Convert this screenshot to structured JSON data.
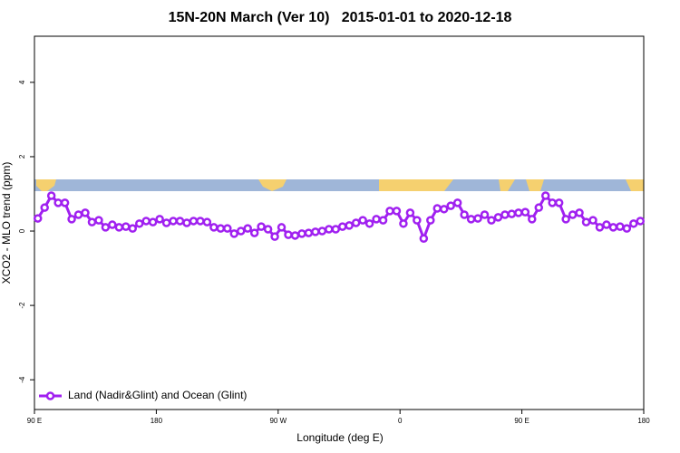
{
  "chart_data": {
    "type": "line",
    "title": "15N-20N March (Ver 10)   2015-01-01 to 2020-12-18",
    "x_label": "Longitude (deg E)",
    "y_label": "XCO2 - MLO trend (ppm)",
    "x": [
      92.5,
      97.5,
      102.5,
      107.5,
      112.5,
      117.5,
      122.5,
      127.5,
      132.5,
      137.5,
      142.5,
      147.5,
      152.5,
      157.5,
      162.5,
      167.5,
      172.5,
      177.5,
      182.5,
      187.5,
      192.5,
      197.5,
      202.5,
      207.5,
      212.5,
      217.5,
      222.5,
      227.5,
      232.5,
      237.5,
      242.5,
      247.5,
      252.5,
      257.5,
      262.5,
      267.5,
      272.5,
      277.5,
      282.5,
      287.5,
      292.5,
      297.5,
      302.5,
      307.5,
      312.5,
      317.5,
      322.5,
      327.5,
      332.5,
      337.5,
      342.5,
      347.5,
      352.5,
      357.5,
      362.5,
      367.5,
      372.5,
      377.5,
      382.5,
      387.5,
      392.5,
      397.5,
      402.5,
      407.5,
      412.5,
      417.5,
      422.5,
      427.5,
      432.5,
      437.5,
      442.5,
      447.5,
      452.5,
      457.5,
      462.5,
      467.5,
      472.5,
      477.5,
      482.5,
      487.5,
      492.5,
      497.5,
      502.5,
      507.5,
      512.5,
      517.5,
      522.5,
      527.5,
      532.5,
      537.5
    ],
    "series": [
      {
        "name": "Land (Nadir&Glint) and Ocean (Glint)",
        "color": "#a020f0",
        "values": [
          0.34,
          0.63,
          0.95,
          0.76,
          0.76,
          0.32,
          0.44,
          0.49,
          0.24,
          0.29,
          0.1,
          0.17,
          0.1,
          0.12,
          0.07,
          0.2,
          0.27,
          0.24,
          0.32,
          0.22,
          0.27,
          0.27,
          0.22,
          0.27,
          0.27,
          0.24,
          0.1,
          0.07,
          0.07,
          -0.07,
          0,
          0.07,
          -0.05,
          0.12,
          0.05,
          -0.15,
          0.1,
          -0.1,
          -0.12,
          -0.07,
          -0.05,
          -0.02,
          0,
          0.05,
          0.05,
          0.12,
          0.15,
          0.22,
          0.29,
          0.2,
          0.32,
          0.29,
          0.54,
          0.54,
          0.2,
          0.49,
          0.29,
          -0.2,
          0.29,
          0.61,
          0.59,
          0.68,
          0.76,
          0.44,
          0.32,
          0.34,
          0.44,
          0.29,
          0.37,
          0.44,
          0.46,
          0.49,
          0.51,
          0.32,
          0.63,
          0.95,
          0.76,
          0.76,
          0.32,
          0.44,
          0.49,
          0.24,
          0.29,
          0.1,
          0.17,
          0.1,
          0.12,
          0.07,
          0.2,
          0.27
        ]
      }
    ],
    "xlim": [
      90,
      540
    ],
    "xticks": [
      {
        "value": 90,
        "label": "90 E"
      },
      180,
      {
        "value": 270,
        "label": "90 W"
      },
      {
        "value": 360,
        "label": "0"
      },
      {
        "value": 450,
        "label": "90 E"
      },
      {
        "value": 540,
        "label": "180"
      }
    ],
    "ylim": [
      -4.8,
      5.24
    ],
    "yticks": [
      -4,
      -2,
      0,
      2,
      4
    ],
    "grid": false,
    "legend": "bottom-left"
  }
}
